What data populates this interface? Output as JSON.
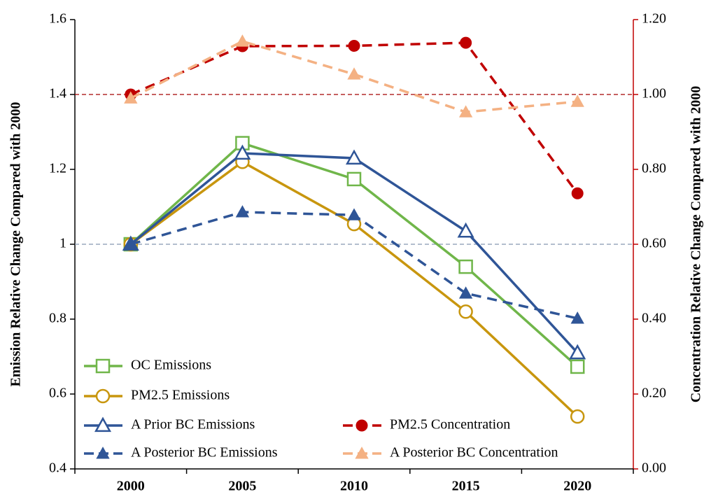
{
  "chart_data": {
    "type": "line",
    "y_label": "Emission Relative Change Compared with 2000",
    "y2_label": "Concentration Relative Change Compared with 2000",
    "categories": [
      "2000",
      "2005",
      "2010",
      "2015",
      "2020"
    ],
    "ylim": [
      0.4,
      1.6
    ],
    "yticks": [
      0.4,
      0.6,
      0.8,
      1,
      1.2,
      1.4,
      1.6
    ],
    "y2lim": [
      0,
      1.2
    ],
    "y2ticks": [
      {
        "value": 0,
        "label": "0.00"
      },
      {
        "value": 0.2,
        "label": "0.20"
      },
      {
        "value": 0.4,
        "label": "0.40"
      },
      {
        "value": 0.6,
        "label": "0.60"
      },
      {
        "value": 0.8,
        "label": "0.80"
      },
      {
        "value": 1,
        "label": "1.00"
      },
      {
        "value": 1.2,
        "label": "1.20"
      }
    ],
    "y2_color": "#c00000",
    "reference_lines": [
      {
        "value": 1,
        "axis": "y",
        "color": "#8496b0"
      },
      {
        "value": 1,
        "axis": "y2",
        "color": "#a50000"
      }
    ],
    "legend": "lower left",
    "series": [
      {
        "name": "OC Emissions",
        "color": "#70b64a",
        "marker": "square",
        "filled": false,
        "dashed": false,
        "values": [
          1.0,
          1.27,
          1.174,
          0.94,
          0.673
        ]
      },
      {
        "name": "PM2.5 Emissions",
        "color": "#c8960e",
        "marker": "circle",
        "filled": false,
        "dashed": false,
        "values": [
          1.0,
          1.22,
          1.054,
          0.82,
          0.54
        ]
      },
      {
        "name": "A Prior BC Emissions",
        "color": "#2f5597",
        "marker": "triangle",
        "filled": false,
        "dashed": false,
        "values": [
          1.0,
          1.243,
          1.23,
          1.035,
          0.71
        ]
      },
      {
        "name": "A Posterior BC Emissions",
        "color": "#2f5597",
        "marker": "triangle",
        "filled": true,
        "dashed": true,
        "values": [
          1.0,
          1.086,
          1.078,
          0.869,
          0.802
        ]
      },
      {
        "name": "PM2.5 Concentration",
        "color": "#c00000",
        "marker": "circle",
        "filled": true,
        "dashed": true,
        "axis": "y2",
        "values": [
          1.0,
          1.129,
          1.13,
          1.138,
          0.736
        ]
      },
      {
        "name": "A Posterior BC Concentration",
        "color": "#f4b183",
        "marker": "triangle",
        "filled": true,
        "dashed": true,
        "axis": "y2",
        "values": [
          0.99,
          1.142,
          1.054,
          0.953,
          0.981
        ]
      }
    ]
  }
}
